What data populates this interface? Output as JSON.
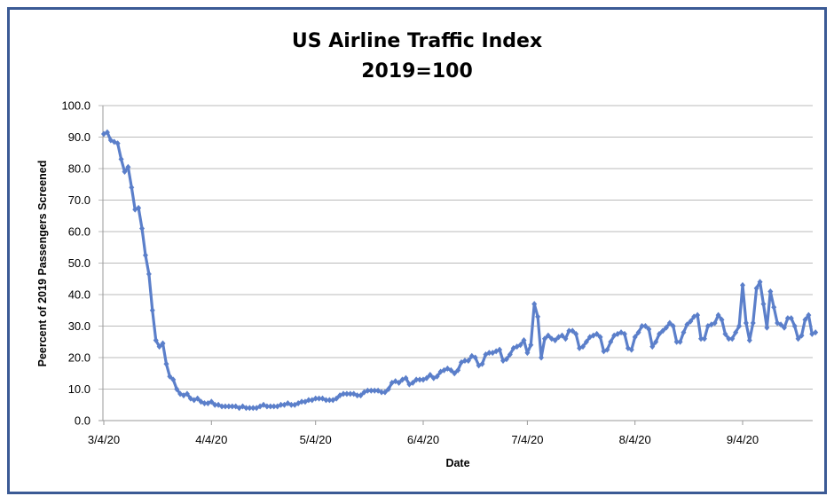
{
  "chart_data": {
    "type": "line",
    "title": "US Airline Traffic Index",
    "subtitle": "2019=100",
    "xlabel": "Date",
    "ylabel": "Peercent of 2019 Passengers Screened",
    "ylim": [
      0,
      100
    ],
    "yticks": [
      "0.0",
      "10.0",
      "20.0",
      "30.0",
      "40.0",
      "50.0",
      "60.0",
      "70.0",
      "80.0",
      "90.0",
      "100.0"
    ],
    "xticks": [
      "3/4/20",
      "4/4/20",
      "5/4/20",
      "6/4/20",
      "7/4/20",
      "8/4/20",
      "9/4/20"
    ],
    "grid": "horizontal",
    "legend": "none",
    "line_color": "#5b7fca",
    "marker": "diamond",
    "series": [
      {
        "dates_from": "3/4/20",
        "frequency": "daily",
        "values": [
          91,
          91.5,
          89,
          88.5,
          88,
          83,
          79,
          80.5,
          74,
          67,
          67.5,
          61,
          52.5,
          46.5,
          35,
          25.5,
          23.5,
          24.5,
          18,
          14,
          13,
          10,
          8.5,
          8,
          8.5,
          7,
          6.5,
          7,
          6,
          5.5,
          5.5,
          6,
          5,
          5,
          4.5,
          4.5,
          4.5,
          4.5,
          4.5,
          4,
          4.5,
          4,
          4,
          4,
          4,
          4.5,
          5,
          4.5,
          4.5,
          4.5,
          4.5,
          5,
          5,
          5.5,
          5,
          5,
          5.5,
          6,
          6,
          6.5,
          6.5,
          7,
          7,
          7,
          6.5,
          6.5,
          6.5,
          7,
          8,
          8.5,
          8.5,
          8.5,
          8.5,
          8,
          8,
          9,
          9.5,
          9.5,
          9.5,
          9.5,
          9,
          9,
          10,
          12,
          12.5,
          12,
          13,
          13.5,
          11.5,
          12,
          13,
          13,
          13,
          13.5,
          14.5,
          13.5,
          14,
          15.5,
          16,
          16.5,
          16,
          15,
          16,
          18.5,
          19,
          19,
          20.5,
          20,
          17.5,
          18,
          21,
          21.5,
          21.5,
          22,
          22.5,
          19,
          19.5,
          21,
          23,
          23.5,
          24,
          25.5,
          21.5,
          24,
          37,
          33,
          20,
          26,
          27,
          26,
          25.5,
          26.5,
          27,
          26,
          28.5,
          28.5,
          27.5,
          23,
          23.5,
          25,
          26.5,
          27,
          27.5,
          26.5,
          22,
          22.5,
          25,
          27,
          27.5,
          28,
          27.5,
          23,
          22.5,
          26.5,
          28,
          30,
          30,
          29,
          23.5,
          25,
          27.5,
          28.5,
          29.5,
          31,
          30,
          25,
          25,
          28,
          30.5,
          31.5,
          33,
          33.5,
          26,
          26,
          30,
          30.5,
          31,
          33.5,
          32,
          27.5,
          26,
          26,
          28,
          30,
          43,
          31,
          25.5,
          31,
          42,
          44,
          37,
          29.5,
          41,
          36,
          31,
          30.5,
          29.5,
          32.5,
          32.5,
          30,
          26,
          27,
          32,
          33.5,
          27.5,
          28
        ]
      }
    ]
  }
}
